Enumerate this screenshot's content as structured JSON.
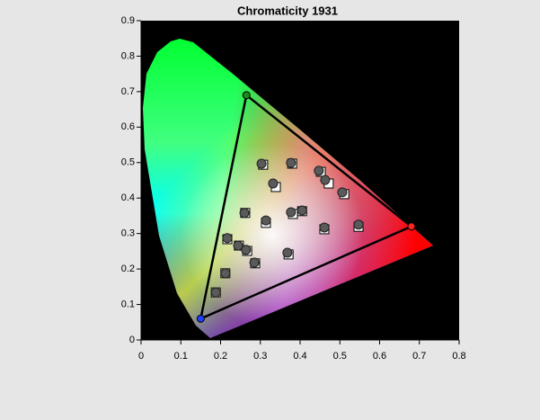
{
  "chart_data": {
    "type": "scatter",
    "title": "Chromaticity 1931",
    "xlim": [
      0,
      0.8
    ],
    "ylim": [
      0,
      0.9
    ],
    "xticks": [
      0,
      0.1,
      0.2,
      0.3,
      0.4,
      0.5,
      0.6,
      0.7,
      0.8
    ],
    "yticks": [
      0,
      0.1,
      0.2,
      0.3,
      0.4,
      0.5,
      0.6,
      0.7,
      0.8,
      0.9
    ],
    "series": [
      {
        "marker": "gamut",
        "color": "#000000",
        "point_colors": [
          "#ff2020",
          "#1a8a1a",
          "#2040ff"
        ],
        "x": [
          0.68,
          0.265,
          0.15
        ],
        "y": [
          0.32,
          0.69,
          0.06
        ]
      },
      {
        "marker": "square",
        "color": "#ffffff",
        "x": [
          0.307,
          0.38,
          0.452,
          0.472,
          0.339,
          0.511,
          0.262,
          0.314,
          0.382,
          0.405,
          0.461,
          0.547,
          0.217,
          0.246,
          0.267,
          0.371,
          0.287,
          0.212,
          0.188
        ],
        "y": [
          0.494,
          0.497,
          0.474,
          0.441,
          0.431,
          0.411,
          0.358,
          0.33,
          0.355,
          0.363,
          0.312,
          0.319,
          0.284,
          0.266,
          0.251,
          0.241,
          0.216,
          0.188,
          0.134
        ]
      },
      {
        "marker": "circle",
        "color": "#5a5a5a",
        "x": [
          0.303,
          0.377,
          0.447,
          0.463,
          0.332,
          0.506,
          0.26,
          0.314,
          0.377,
          0.405,
          0.461,
          0.547,
          0.217,
          0.244,
          0.264,
          0.368,
          0.285,
          0.212,
          0.188
        ],
        "y": [
          0.497,
          0.499,
          0.477,
          0.451,
          0.441,
          0.416,
          0.358,
          0.337,
          0.36,
          0.365,
          0.317,
          0.325,
          0.287,
          0.266,
          0.254,
          0.246,
          0.218,
          0.188,
          0.134
        ]
      }
    ]
  }
}
